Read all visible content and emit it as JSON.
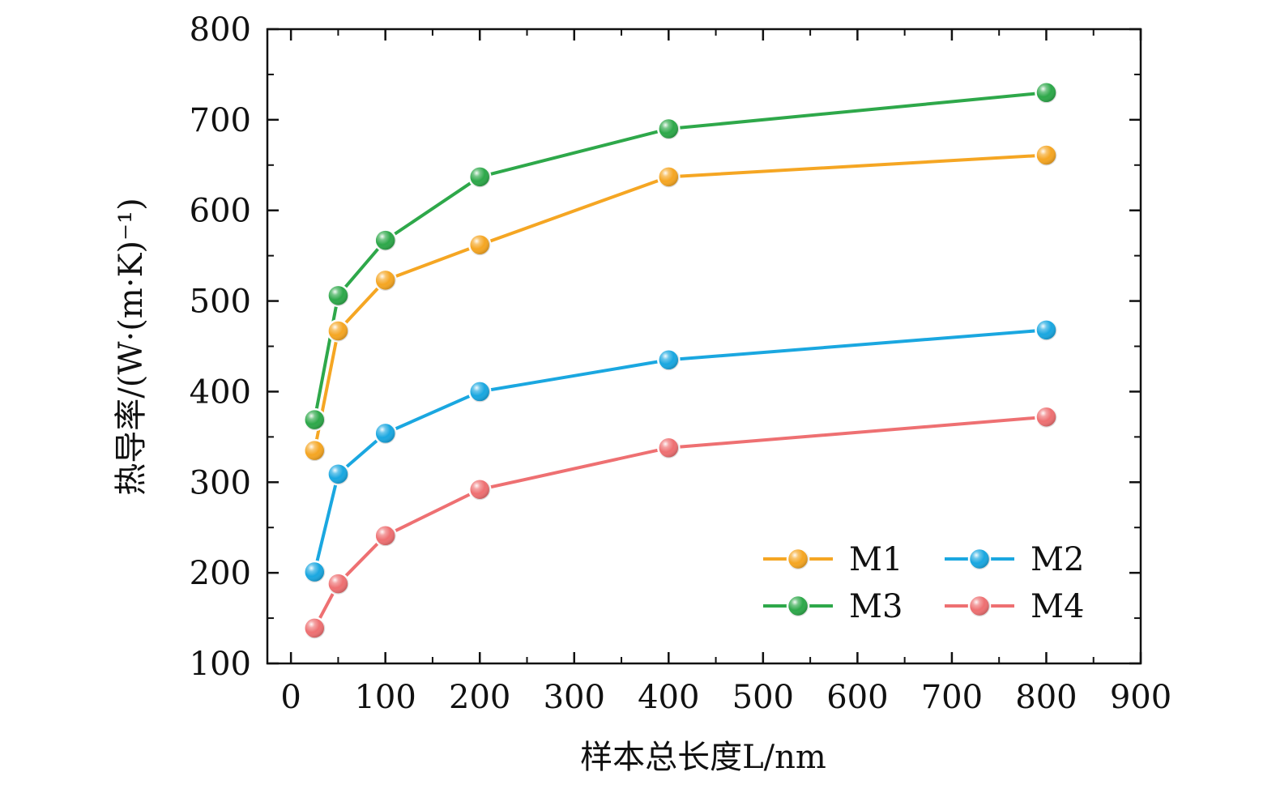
{
  "chart_data": {
    "type": "line",
    "title": "",
    "xlabel": "样本总长度L/nm",
    "ylabel": "热导率/(W·(m·K)⁻¹)",
    "xlim": [
      -25,
      900
    ],
    "ylim": [
      100,
      800
    ],
    "xticks": [
      "0",
      "100",
      "200",
      "300",
      "400",
      "500",
      "600",
      "700",
      "800",
      "900"
    ],
    "yticks": [
      "100",
      "200",
      "300",
      "400",
      "500",
      "600",
      "700",
      "800"
    ],
    "legend_position": "lower-right",
    "x": [
      25,
      50,
      100,
      200,
      400,
      800
    ],
    "series": [
      {
        "name": "M1",
        "color": "#F5A623",
        "values": [
          335,
          467,
          523,
          562,
          637,
          661
        ]
      },
      {
        "name": "M2",
        "color": "#1AA7E0",
        "values": [
          201,
          309,
          354,
          400,
          435,
          468
        ]
      },
      {
        "name": "M3",
        "color": "#2EA84A",
        "values": [
          369,
          506,
          567,
          637,
          690,
          730
        ]
      },
      {
        "name": "M4",
        "color": "#EE7072",
        "values": [
          139,
          188,
          241,
          292,
          338,
          372
        ]
      }
    ]
  }
}
